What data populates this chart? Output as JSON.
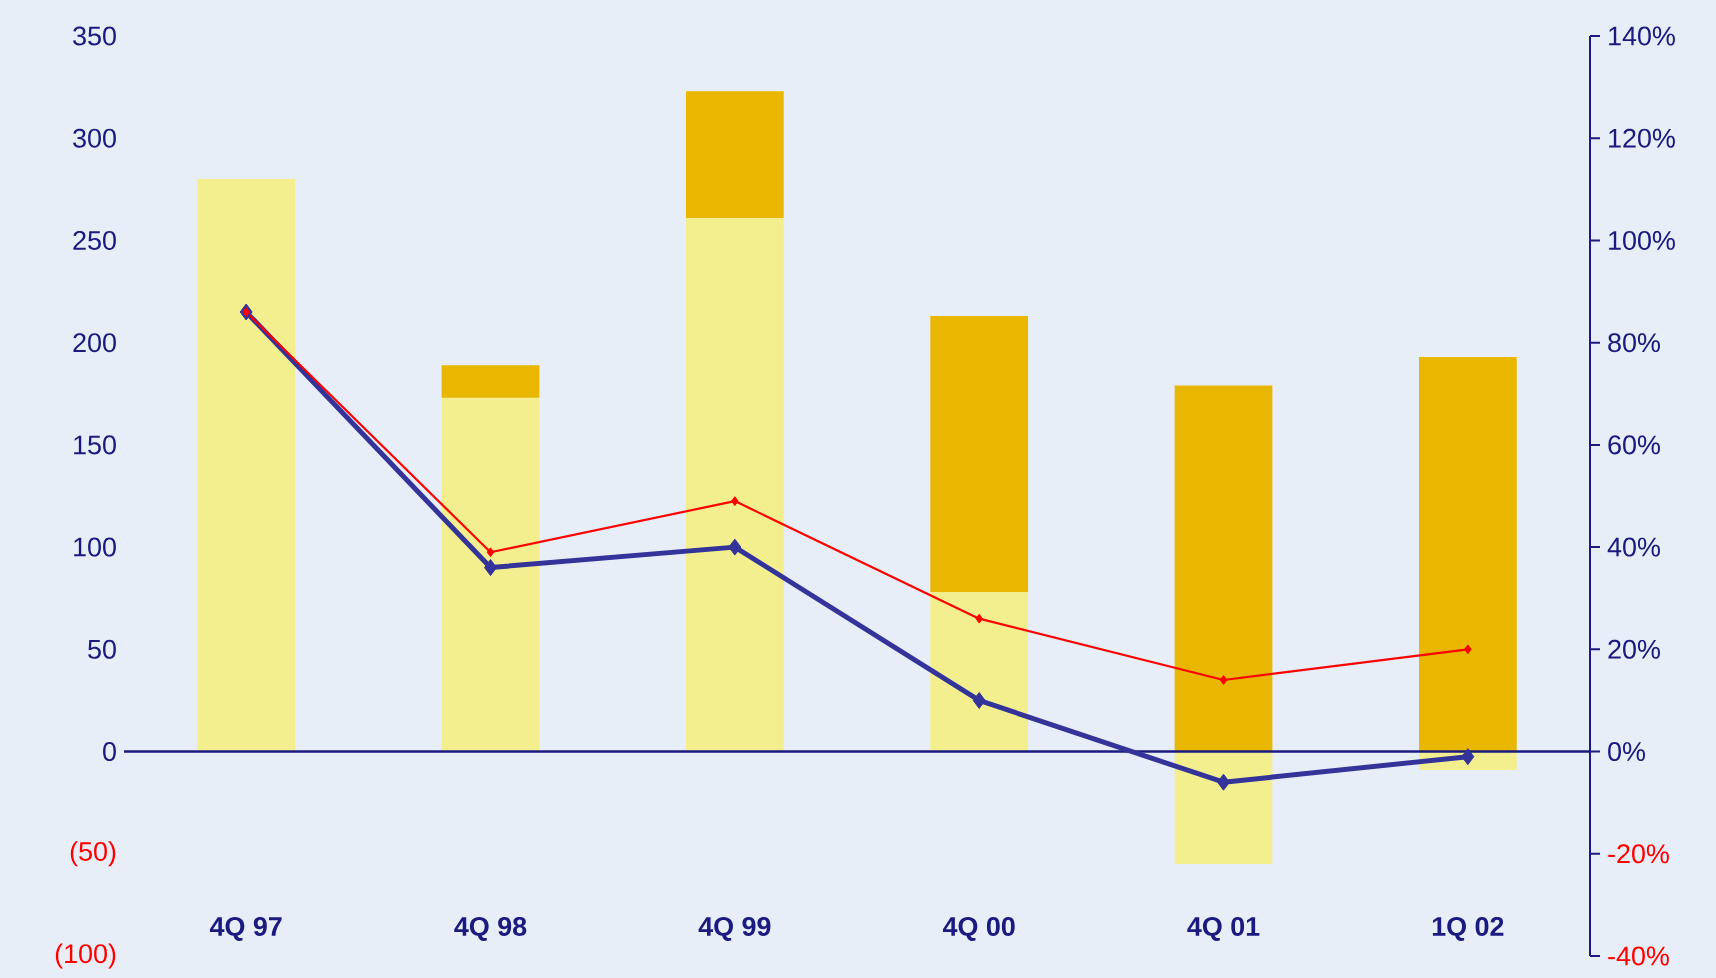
{
  "chart_data": {
    "type": "bar",
    "stacked": true,
    "categories": [
      "4Q 97",
      "4Q 98",
      "4Q 99",
      "4Q 00",
      "4Q 01",
      "1Q 02"
    ],
    "series": [
      {
        "color": "#f4ef8e",
        "values": [
          280,
          173,
          261,
          78,
          -55,
          -9
        ]
      },
      {
        "color": "#e9b600",
        "values": [
          0,
          16,
          62,
          135,
          179,
          193
        ]
      },
      {
        "type": "line",
        "axis": "y2",
        "color": "#333399",
        "marker": "diamond",
        "line_style": "solid",
        "values": [
          86,
          36,
          40,
          10,
          -6,
          -1
        ]
      },
      {
        "type": "line",
        "axis": "y2",
        "color": "#ff0000",
        "marker": "diamond",
        "line_style": "solid",
        "values": [
          86,
          39,
          49,
          26,
          14,
          20
        ]
      }
    ],
    "ylim": [
      -100,
      350
    ],
    "yticks": [
      {
        "value": -100,
        "label": "(100)"
      },
      {
        "value": -50,
        "label": "(50)"
      },
      0,
      50,
      100,
      150,
      200,
      250,
      300,
      350
    ],
    "y2lim": [
      -40,
      140
    ],
    "y2ticks": [
      {
        "value": -40,
        "label": "-40%"
      },
      {
        "value": -20,
        "label": "-20%"
      },
      {
        "value": 0,
        "label": "0%"
      },
      {
        "value": 20,
        "label": "20%"
      },
      {
        "value": 40,
        "label": "40%"
      },
      {
        "value": 60,
        "label": "60%"
      },
      {
        "value": 80,
        "label": "80%"
      },
      {
        "value": 100,
        "label": "100%"
      },
      {
        "value": 120,
        "label": "120%"
      },
      {
        "value": 140,
        "label": "140%"
      }
    ],
    "ref_lines": [
      {
        "axis": "y",
        "value": 0,
        "color": "#1a1a80"
      }
    ],
    "grid": false
  }
}
